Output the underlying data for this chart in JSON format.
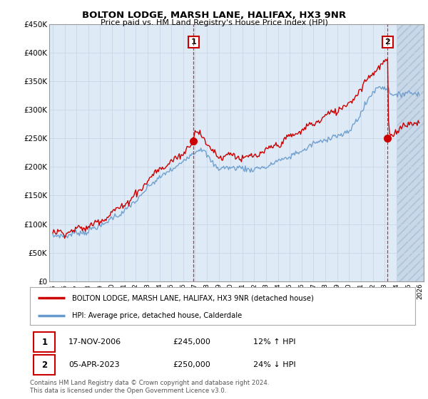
{
  "title": "BOLTON LODGE, MARSH LANE, HALIFAX, HX3 9NR",
  "subtitle": "Price paid vs. HM Land Registry's House Price Index (HPI)",
  "legend_line1": "BOLTON LODGE, MARSH LANE, HALIFAX, HX3 9NR (detached house)",
  "legend_line2": "HPI: Average price, detached house, Calderdale",
  "transaction1_date": "17-NOV-2006",
  "transaction1_price": "£245,000",
  "transaction1_hpi": "12% ↑ HPI",
  "transaction2_date": "05-APR-2023",
  "transaction2_price": "£250,000",
  "transaction2_hpi": "24% ↓ HPI",
  "footer": "Contains HM Land Registry data © Crown copyright and database right 2024.\nThis data is licensed under the Open Government Licence v3.0.",
  "red_color": "#cc0000",
  "blue_color": "#6699cc",
  "grid_color": "#c8d8e8",
  "background_color": "#ffffff",
  "plot_bg_color": "#deeaf5",
  "future_bg_color": "#c8d8e8",
  "ylim": [
    0,
    450000
  ],
  "yticks": [
    0,
    50000,
    100000,
    150000,
    200000,
    250000,
    300000,
    350000,
    400000,
    450000
  ],
  "marker1_x": 2006.88,
  "marker1_y": 245000,
  "marker2_x": 2023.26,
  "marker2_y": 250000,
  "vline1_x": 2006.88,
  "vline2_x": 2023.26,
  "xmin": 1994.7,
  "xmax": 2026.3,
  "future_start": 2024.0
}
